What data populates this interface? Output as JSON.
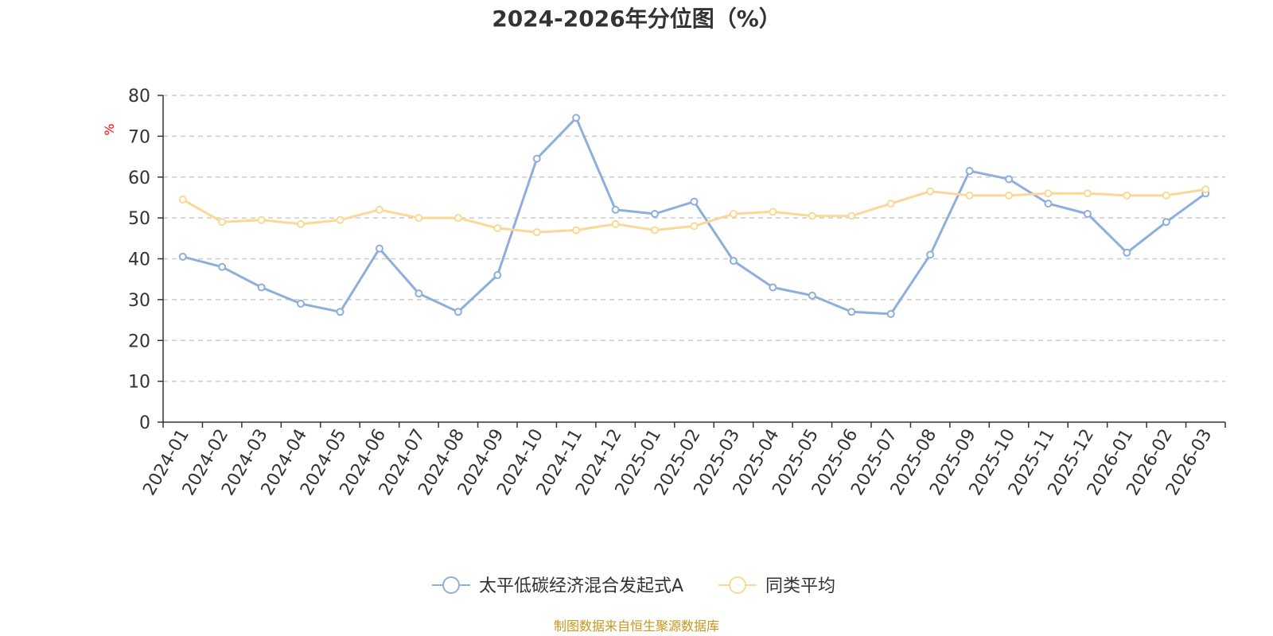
{
  "chart_data": {
    "type": "line",
    "title": "2024-2026年分位图（%）",
    "ylabel": "%",
    "ylim": [
      0,
      80
    ],
    "yticks": [
      0,
      10,
      20,
      30,
      40,
      50,
      60,
      70,
      80
    ],
    "grid": true,
    "legend_position": "bottom",
    "categories": [
      "2024-01",
      "2024-02",
      "2024-03",
      "2024-04",
      "2024-05",
      "2024-06",
      "2024-07",
      "2024-08",
      "2024-09",
      "2024-10",
      "2024-11",
      "2024-12",
      "2025-01",
      "2025-02",
      "2025-03",
      "2025-04",
      "2025-05",
      "2025-06",
      "2025-07",
      "2025-08",
      "2025-09",
      "2025-10",
      "2025-11",
      "2025-12",
      "2026-01",
      "2026-02",
      "2026-03"
    ],
    "series": [
      {
        "name": "太平低碳经济混合发起式A",
        "color": "#8eaedc",
        "values": [
          40.5,
          38.0,
          33.0,
          29.0,
          27.0,
          42.5,
          31.5,
          27.0,
          36.0,
          64.5,
          74.5,
          52.0,
          51.0,
          54.0,
          39.5,
          33.0,
          31.0,
          27.0,
          26.5,
          41.0,
          61.5,
          59.5,
          53.5,
          51.0,
          41.5,
          49.0,
          56.0
        ]
      },
      {
        "name": "同类平均",
        "color": "#fbd895",
        "values": [
          54.5,
          49.0,
          49.5,
          48.5,
          49.5,
          52.0,
          50.0,
          50.0,
          47.5,
          46.5,
          47.0,
          48.5,
          47.0,
          48.0,
          51.0,
          51.5,
          50.5,
          50.5,
          53.5,
          56.5,
          55.5,
          55.5,
          56.0,
          56.0,
          55.5,
          55.5,
          57.0
        ]
      }
    ]
  },
  "source_note": "制图数据来自恒生聚源数据库"
}
